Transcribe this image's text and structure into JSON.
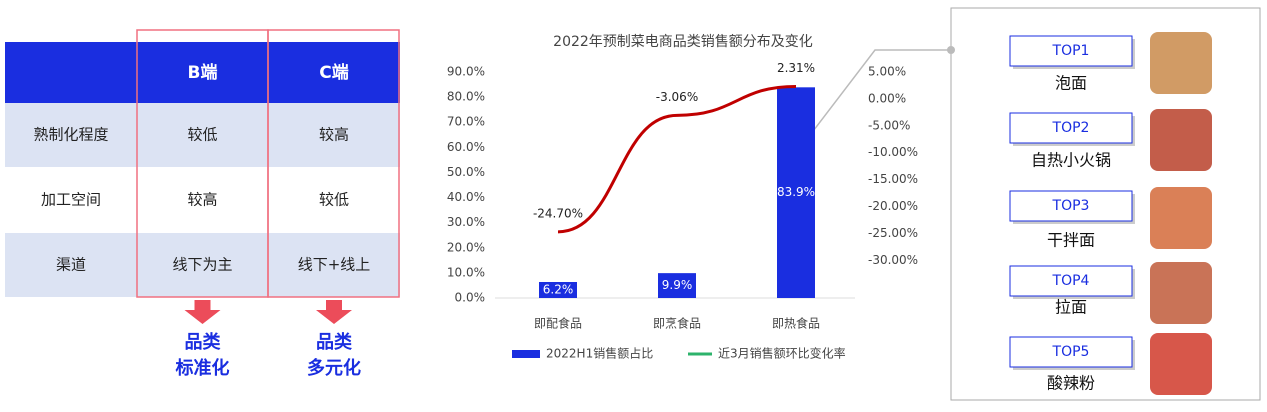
{
  "table": {
    "header": [
      "B端",
      "C端"
    ],
    "rows": [
      [
        "熟制化程度",
        "较低",
        "较高"
      ],
      [
        "加工空间",
        "较高",
        "较低"
      ],
      [
        "渠道",
        "线下为主",
        "线下+线上"
      ]
    ],
    "results": [
      [
        "品类",
        "标准化"
      ],
      [
        "品类",
        "多元化"
      ]
    ]
  },
  "chart_data": {
    "type": "bar",
    "title": "2022年预制菜电商品类销售额分布及变化",
    "categories": [
      "即配食品",
      "即烹食品",
      "即热食品"
    ],
    "series": [
      {
        "name": "2022H1销售额占比",
        "color": "#1a2ee0",
        "values": [
          6.2,
          9.9,
          83.9
        ],
        "value_labels": [
          "6.2%",
          "9.9%",
          "83.9%"
        ]
      },
      {
        "name": "近3月销售额环比变化率",
        "color": "#c00000",
        "legend_color": "#2db36b",
        "values": [
          -24.7,
          -3.06,
          2.31
        ],
        "value_labels": [
          "-24.70%",
          "-3.06%",
          "2.31%"
        ],
        "axis": "y2"
      }
    ],
    "ylim": [
      0,
      90
    ],
    "yticks": [
      {
        "value": 0,
        "label": "0.0%"
      },
      {
        "value": 10,
        "label": "10.0%"
      },
      {
        "value": 20,
        "label": "20.0%"
      },
      {
        "value": 30,
        "label": "30.0%"
      },
      {
        "value": 40,
        "label": "40.0%"
      },
      {
        "value": 50,
        "label": "50.0%"
      },
      {
        "value": 60,
        "label": "60.0%"
      },
      {
        "value": 70,
        "label": "70.0%"
      },
      {
        "value": 80,
        "label": "80.0%"
      },
      {
        "value": 90,
        "label": "90.0%"
      }
    ],
    "y2lim": [
      -37,
      5
    ],
    "y2ticks": [
      {
        "value": 5,
        "label": "5.00%"
      },
      {
        "value": 0,
        "label": "0.00%"
      },
      {
        "value": -5,
        "label": "-5.00%"
      },
      {
        "value": -10,
        "label": "-10.00%"
      },
      {
        "value": -15,
        "label": "-15.00%"
      },
      {
        "value": -20,
        "label": "-20.00%"
      },
      {
        "value": -25,
        "label": "-25.00%"
      },
      {
        "value": -30,
        "label": "-30.00%"
      }
    ]
  },
  "top_list": [
    {
      "rank": "TOP1",
      "name": "泡面"
    },
    {
      "rank": "TOP2",
      "name": "自热小火锅"
    },
    {
      "rank": "TOP3",
      "name": "干拌面"
    },
    {
      "rank": "TOP4",
      "name": "拉面"
    },
    {
      "rank": "TOP5",
      "name": "酸辣粉"
    }
  ]
}
